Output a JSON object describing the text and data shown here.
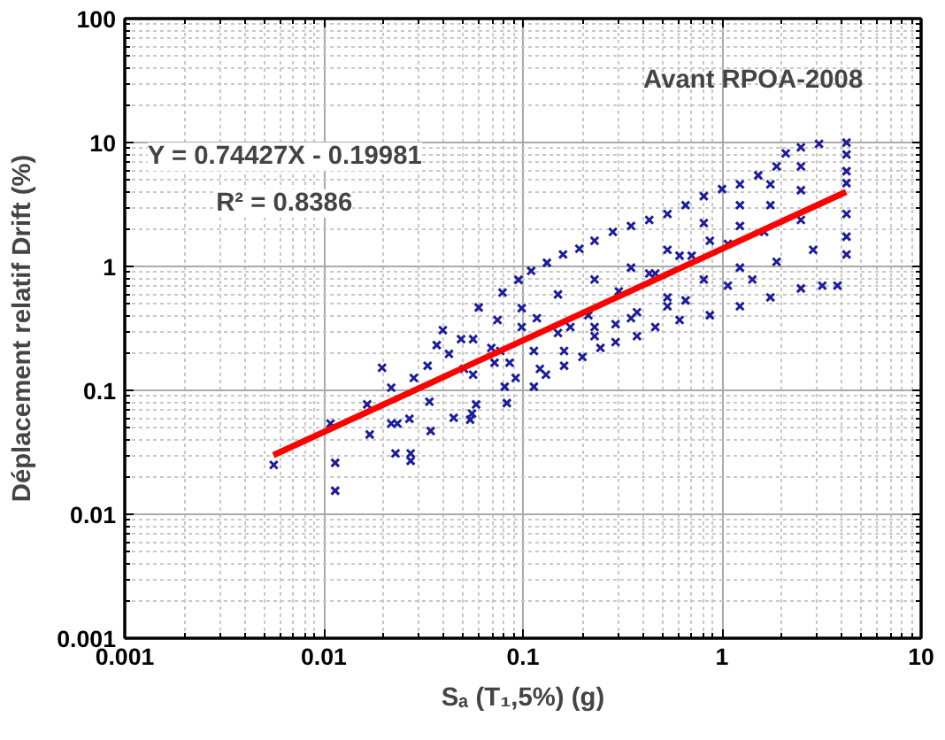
{
  "chart_data": {
    "type": "scatter",
    "xlabel": "Sₐ (T₁,5%) (g)",
    "ylabel": "Déplacement relatif Drift (%)",
    "annotations": [
      "Avant RPOA-2008",
      "Y = 0.74427X - 0.19981",
      "R² = 0.8386"
    ],
    "log": "xy",
    "grid": true,
    "xlim": [
      0.001,
      10
    ],
    "ylim": [
      0.001,
      100
    ],
    "xticks": [
      0.001,
      0.01,
      0.1,
      1,
      10
    ],
    "yticks": [
      0.001,
      0.01,
      0.1,
      1,
      10,
      100
    ],
    "series": [
      {
        "color": "#1c1c9c",
        "marker": "cross",
        "x": [
          0.0056,
          0.0114,
          0.0114,
          0.0108,
          0.017,
          0.0165,
          0.0218,
          0.0218,
          0.0234,
          0.0229,
          0.0269,
          0.0273,
          0.0273,
          0.0344,
          0.0339,
          0.0332,
          0.0196,
          0.0283,
          0.0396,
          0.0449,
          0.0543,
          0.0555,
          0.0582,
          0.072,
          0.081,
          0.083,
          0.079,
          0.06,
          0.095,
          0.11,
          0.132,
          0.159,
          0.192,
          0.229,
          0.283,
          0.349,
          0.431,
          0.532,
          0.656,
          0.81,
          1.0,
          1.23,
          1.52,
          1.88,
          2.09,
          2.49,
          3.07,
          4.22,
          0.0562,
          0.0745,
          0.0986,
          0.15,
          0.229,
          0.349,
          0.532,
          0.81,
          1.23,
          1.75,
          2.49,
          4.22,
          4.22,
          4.22,
          2.49,
          1.75,
          1.23,
          0.869,
          0.612,
          0.431,
          0.303,
          0.213,
          0.15,
          0.1135,
          0.1135,
          0.0857,
          4.22,
          2.49,
          1.63,
          1.07,
          0.704,
          0.462,
          4.22,
          4.22,
          2.87,
          1.88,
          1.23,
          0.81,
          0.532,
          0.349,
          0.229,
          0.161,
          0.1217,
          0.0919,
          3.8,
          3.19,
          2.49,
          1.75,
          1.23,
          0.869,
          0.612,
          0.462,
          0.374,
          0.292,
          0.245,
          0.199,
          0.161,
          0.1305,
          1.07,
          1.42,
          0.656,
          0.532,
          0.374,
          0.292,
          0.173,
          0.1175,
          0.0986,
          0.0694,
          0.0506,
          0.0425,
          0.0369,
          0.0489,
          0.077,
          0.0562,
          0.229
        ],
        "values": [
          0.025,
          0.026,
          0.0155,
          0.054,
          0.044,
          0.077,
          0.105,
          0.054,
          0.054,
          0.031,
          0.059,
          0.031,
          0.027,
          0.047,
          0.081,
          0.158,
          0.152,
          0.126,
          0.306,
          0.06,
          0.058,
          0.065,
          0.077,
          0.167,
          0.107,
          0.079,
          0.615,
          0.466,
          0.78,
          0.92,
          1.07,
          1.25,
          1.39,
          1.61,
          1.9,
          2.12,
          2.37,
          2.65,
          3.12,
          3.69,
          4.21,
          4.6,
          5.43,
          6.41,
          8.18,
          9.14,
          9.76,
          9.98,
          0.259,
          0.37,
          0.461,
          0.594,
          0.784,
          0.978,
          1.36,
          2.24,
          3.12,
          4.6,
          6.41,
          8.0,
          5.87,
          4.7,
          4.12,
          3.12,
          2.12,
          1.61,
          1.22,
          0.876,
          0.629,
          0.404,
          0.29,
          0.208,
          0.107,
          0.167,
          2.65,
          2.37,
          1.9,
          1.52,
          1.22,
          0.876,
          1.74,
          1.25,
          1.36,
          1.09,
          0.978,
          0.784,
          0.563,
          0.382,
          0.274,
          0.208,
          0.149,
          0.126,
          0.7,
          0.7,
          0.664,
          0.563,
          0.477,
          0.404,
          0.37,
          0.324,
          0.274,
          0.245,
          0.22,
          0.186,
          0.158,
          0.134,
          0.7,
          0.784,
          0.532,
          0.477,
          0.427,
          0.342,
          0.324,
          0.382,
          0.324,
          0.22,
          0.149,
          0.197,
          0.232,
          0.259,
          0.208,
          0.134,
          0.324
        ]
      },
      {
        "type": "line",
        "marker": "none",
        "color": "#ff0000",
        "x": [
          0.00558,
          4.2
        ],
        "values": [
          0.03,
          4.0
        ]
      }
    ]
  }
}
